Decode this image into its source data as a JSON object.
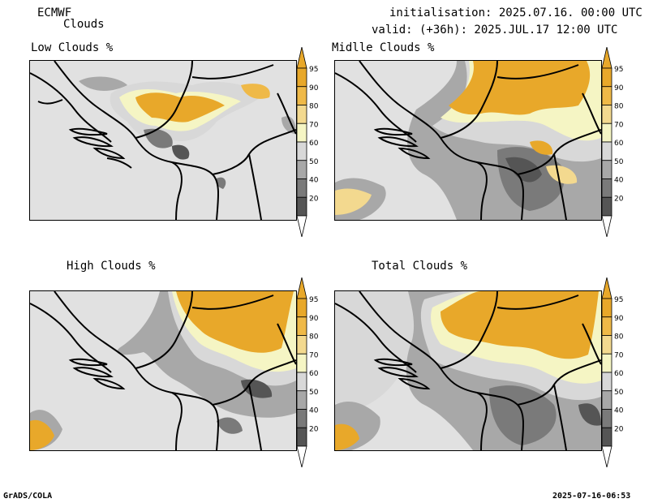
{
  "header": {
    "model": "ECMWF",
    "product": "Clouds",
    "init": "initialisation: 2025.07.16. 00:00 UTC",
    "valid": "valid: (+36h): 2025.JUL.17 12:00 UTC"
  },
  "panels": [
    {
      "title": "Low Clouds %"
    },
    {
      "title": "Midlle Clouds %"
    },
    {
      "title": "High Clouds %"
    },
    {
      "title": "Total Clouds %"
    }
  ],
  "colorbar": {
    "levels": [
      "95",
      "90",
      "80",
      "70",
      "60",
      "50",
      "40",
      "20"
    ],
    "colors": [
      "#e8a82a",
      "#efb948",
      "#f3d98f",
      "#f5f5c4",
      "#d8d8d8",
      "#a8a8a8",
      "#7a7a7a",
      "#555555"
    ]
  },
  "footer": {
    "left": "GrADS/COLA",
    "right": "2025-07-16-06:53"
  }
}
